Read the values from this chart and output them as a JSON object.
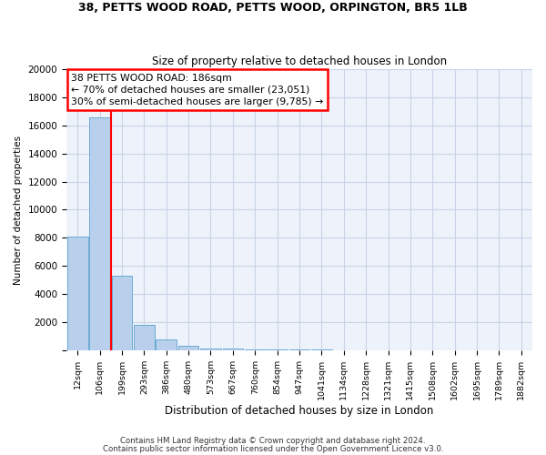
{
  "title1": "38, PETTS WOOD ROAD, PETTS WOOD, ORPINGTON, BR5 1LB",
  "title2": "Size of property relative to detached houses in London",
  "xlabel": "Distribution of detached houses by size in London",
  "ylabel": "Number of detached properties",
  "bar_labels": [
    "12sqm",
    "106sqm",
    "199sqm",
    "293sqm",
    "386sqm",
    "480sqm",
    "573sqm",
    "667sqm",
    "760sqm",
    "854sqm",
    "947sqm",
    "1041sqm",
    "1134sqm",
    "1228sqm",
    "1321sqm",
    "1415sqm",
    "1508sqm",
    "1602sqm",
    "1695sqm",
    "1789sqm",
    "1882sqm"
  ],
  "bar_values": [
    8100,
    16600,
    5300,
    1800,
    750,
    300,
    150,
    100,
    80,
    60,
    40,
    30,
    20,
    15,
    15,
    10,
    10,
    10,
    8,
    8,
    5
  ],
  "bar_color": "#b8d0ec",
  "bar_edge_color": "#6aaad4",
  "background_color": "#eef2fb",
  "grid_color": "#c8d4e8",
  "red_line_x": 1.5,
  "annotation_line1": "38 PETTS WOOD ROAD: 186sqm",
  "annotation_line2": "← 70% of detached houses are smaller (23,051)",
  "annotation_line3": "30% of semi-detached houses are larger (9,785) →",
  "footer1": "Contains HM Land Registry data © Crown copyright and database right 2024.",
  "footer2": "Contains public sector information licensed under the Open Government Licence v3.0.",
  "ylim": [
    0,
    20000
  ],
  "yticks": [
    0,
    2000,
    4000,
    6000,
    8000,
    10000,
    12000,
    14000,
    16000,
    18000,
    20000
  ]
}
